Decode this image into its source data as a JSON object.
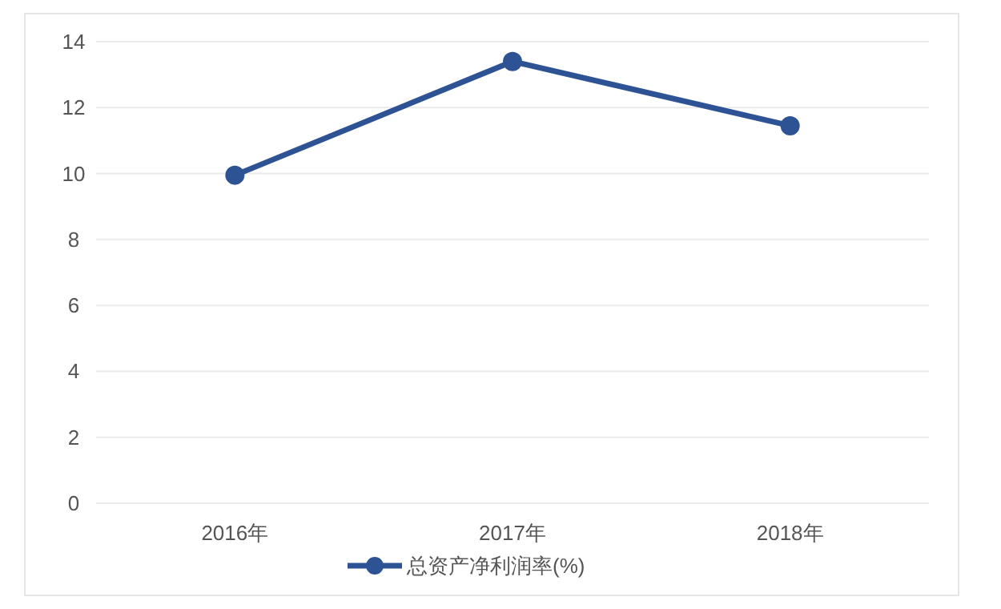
{
  "chart_data": {
    "type": "line",
    "categories": [
      "2016年",
      "2017年",
      "2018年"
    ],
    "series": [
      {
        "name": "总资产净利润率(%)",
        "color": "#2e5395",
        "values": [
          9.95,
          13.4,
          11.45
        ]
      }
    ],
    "ylim": [
      0,
      14
    ],
    "yticks": [
      0,
      2,
      4,
      6,
      8,
      10,
      12,
      14
    ],
    "grid": "y",
    "legend": "bottom",
    "marker": "circle",
    "line_style": "solid"
  }
}
